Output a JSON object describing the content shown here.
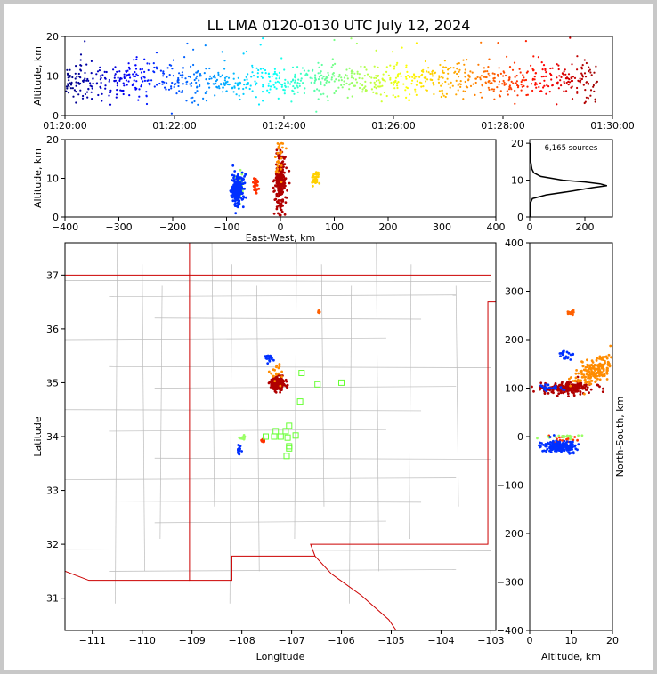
{
  "chart_data": [
    {
      "id": "time-height",
      "type": "scatter",
      "title": "LL LMA 0120-0130 UTC July 12, 2024",
      "xlabel": "",
      "ylabel": "Altitude, km",
      "x_ticks": [
        "01:20:00",
        "01:22:00",
        "01:24:00",
        "01:26:00",
        "01:28:00",
        "01:30:00"
      ],
      "x_range_minutes": [
        0,
        10
      ],
      "y_ticks": [
        "0",
        "10",
        "20"
      ],
      "ylim": [
        0,
        20
      ],
      "colormap": "jet by time",
      "density_by_minute": [
        {
          "t": 0.1,
          "alt": 8.5,
          "spread": 2.0
        },
        {
          "t": 0.5,
          "alt": 9.0,
          "spread": 2.5
        },
        {
          "t": 1.0,
          "alt": 8.5,
          "spread": 2.5
        },
        {
          "t": 1.5,
          "alt": 9.0,
          "spread": 2.5
        },
        {
          "t": 2.0,
          "alt": 9.0,
          "spread": 2.5
        },
        {
          "t": 2.5,
          "alt": 8.0,
          "spread": 2.0
        },
        {
          "t": 3.0,
          "alt": 8.0,
          "spread": 1.8
        },
        {
          "t": 3.5,
          "alt": 8.5,
          "spread": 2.0
        },
        {
          "t": 4.0,
          "alt": 8.5,
          "spread": 2.0
        },
        {
          "t": 4.5,
          "alt": 9.0,
          "spread": 2.0
        },
        {
          "t": 5.0,
          "alt": 9.0,
          "spread": 2.0
        },
        {
          "t": 5.5,
          "alt": 9.0,
          "spread": 2.0
        },
        {
          "t": 6.0,
          "alt": 8.5,
          "spread": 2.0
        },
        {
          "t": 6.5,
          "alt": 9.0,
          "spread": 2.0
        },
        {
          "t": 7.0,
          "alt": 9.0,
          "spread": 2.2
        },
        {
          "t": 7.5,
          "alt": 9.0,
          "spread": 2.2
        },
        {
          "t": 8.0,
          "alt": 8.5,
          "spread": 2.2
        },
        {
          "t": 8.5,
          "alt": 8.5,
          "spread": 2.0
        },
        {
          "t": 9.0,
          "alt": 8.5,
          "spread": 2.0
        },
        {
          "t": 9.5,
          "alt": 8.5,
          "spread": 2.5
        }
      ]
    },
    {
      "id": "ew-altitude",
      "type": "scatter",
      "xlabel": "East-West, km",
      "ylabel": "Altitude, km",
      "x_ticks": [
        "−400",
        "−300",
        "−200",
        "−100",
        "0",
        "100",
        "200",
        "300",
        "400"
      ],
      "xlim": [
        -400,
        400
      ],
      "y_ticks": [
        "0",
        "10",
        "20"
      ],
      "ylim": [
        0,
        20
      ],
      "clusters": [
        {
          "x": 0,
          "alt": 9,
          "sx": 5,
          "salt": 4,
          "color": "#b00000"
        },
        {
          "x": -3,
          "alt": 16,
          "sx": 4,
          "salt": 3,
          "color": "#ff8c00"
        },
        {
          "x": -75,
          "alt": 8,
          "sx": 3,
          "salt": 2,
          "color": "#9aff66"
        },
        {
          "x": -45,
          "alt": 8,
          "sx": 3,
          "salt": 1,
          "color": "#ff3000"
        },
        {
          "x": -80,
          "alt": 7,
          "sx": 6,
          "salt": 2,
          "color": "#0030ff"
        },
        {
          "x": 65,
          "alt": 10,
          "sx": 3,
          "salt": 1,
          "color": "#ffd000"
        }
      ]
    },
    {
      "id": "altitude-histogram",
      "type": "line",
      "annotation": "6,165 sources",
      "x_ticks": [
        "0",
        "200"
      ],
      "xlim": [
        0,
        300
      ],
      "y_ticks": [
        "0",
        "10",
        "20"
      ],
      "ylim": [
        0,
        21
      ],
      "profile": [
        {
          "alt": 0.0,
          "count": 2
        },
        {
          "alt": 2.0,
          "count": 2
        },
        {
          "alt": 4.0,
          "count": 4
        },
        {
          "alt": 5.0,
          "count": 10
        },
        {
          "alt": 6.0,
          "count": 60
        },
        {
          "alt": 7.0,
          "count": 150
        },
        {
          "alt": 8.0,
          "count": 230
        },
        {
          "alt": 8.5,
          "count": 280
        },
        {
          "alt": 9.0,
          "count": 255
        },
        {
          "alt": 9.5,
          "count": 200
        },
        {
          "alt": 10.0,
          "count": 120
        },
        {
          "alt": 11.0,
          "count": 40
        },
        {
          "alt": 12.0,
          "count": 15
        },
        {
          "alt": 13.0,
          "count": 8
        },
        {
          "alt": 15.0,
          "count": 4
        },
        {
          "alt": 17.0,
          "count": 2
        },
        {
          "alt": 20.0,
          "count": 1
        }
      ]
    },
    {
      "id": "plan-view",
      "type": "scatter",
      "xlabel": "Longitude",
      "ylabel": "Latitude",
      "x_ticks": [
        "−111",
        "−110",
        "−109",
        "−108",
        "−107",
        "−106",
        "−105",
        "−104",
        "−103"
      ],
      "xlim": [
        -111.55,
        -102.9
      ],
      "y_ticks": [
        "31",
        "32",
        "33",
        "34",
        "35",
        "36",
        "37"
      ],
      "ylim": [
        30.4,
        37.6
      ],
      "stations": [
        {
          "lon": -107.12,
          "lat": 34.1
        },
        {
          "lon": -107.32,
          "lat": 34.1
        },
        {
          "lon": -107.05,
          "lat": 34.2
        },
        {
          "lon": -107.35,
          "lat": 34.0
        },
        {
          "lon": -107.22,
          "lat": 34.0
        },
        {
          "lon": -107.08,
          "lat": 33.98
        },
        {
          "lon": -106.92,
          "lat": 34.02
        },
        {
          "lon": -107.05,
          "lat": 33.82
        },
        {
          "lon": -107.05,
          "lat": 33.78
        },
        {
          "lon": -107.1,
          "lat": 33.64
        },
        {
          "lon": -107.52,
          "lat": 34.0
        },
        {
          "lon": -106.83,
          "lat": 34.65
        },
        {
          "lon": -106.8,
          "lat": 35.18
        },
        {
          "lon": -106.48,
          "lat": 34.97
        },
        {
          "lon": -106.0,
          "lat": 35.0
        }
      ],
      "clusters": [
        {
          "lon": -107.28,
          "lat": 34.98,
          "slon": 0.07,
          "slat": 0.06,
          "color": "#b00000"
        },
        {
          "lon": -107.32,
          "lat": 35.18,
          "slon": 0.05,
          "slat": 0.12,
          "color": "#ff8c00"
        },
        {
          "lon": -107.45,
          "lat": 35.45,
          "slon": 0.03,
          "slat": 0.05,
          "color": "#0030ff"
        },
        {
          "lon": -107.98,
          "lat": 33.98,
          "slon": 0.03,
          "slat": 0.02,
          "color": "#9aff66"
        },
        {
          "lon": -107.58,
          "lat": 33.93,
          "slon": 0.02,
          "slat": 0.02,
          "color": "#ff3000"
        },
        {
          "lon": -108.05,
          "lat": 33.75,
          "slon": 0.02,
          "slat": 0.05,
          "color": "#0030ff"
        },
        {
          "lon": -106.45,
          "lat": 36.32,
          "slon": 0.01,
          "slat": 0.01,
          "color": "#ff6000"
        }
      ]
    },
    {
      "id": "altitude-ns",
      "type": "scatter",
      "xlabel": "Altitude, km",
      "ylabel": "North-South, km",
      "x_ticks": [
        "0",
        "10",
        "20"
      ],
      "xlim": [
        0,
        20
      ],
      "y_ticks": [
        "−400",
        "−300",
        "−200",
        "−100",
        "0",
        "100",
        "200",
        "300",
        "400"
      ],
      "ylim": [
        -400,
        400
      ],
      "clusters": [
        {
          "alt": 9,
          "ns": 100,
          "salt": 3,
          "sns": 6,
          "color": "#b00000"
        },
        {
          "alt": 16,
          "ns": 125,
          "salt": 2.5,
          "sns": 12,
          "color": "#ff8c00"
        },
        {
          "alt": 5,
          "ns": 100,
          "salt": 2,
          "sns": 5,
          "color": "#0030ff"
        },
        {
          "alt": 8,
          "ns": -5,
          "salt": 2,
          "sns": 4,
          "color": "#ff3000"
        },
        {
          "alt": 8,
          "ns": 0,
          "salt": 2,
          "sns": 2,
          "color": "#9aff66"
        },
        {
          "alt": 7,
          "ns": -20,
          "salt": 2,
          "sns": 6,
          "color": "#0030ff"
        },
        {
          "alt": 9,
          "ns": 170,
          "salt": 1,
          "sns": 5,
          "color": "#0030ff"
        },
        {
          "alt": 10,
          "ns": 255,
          "salt": 0.5,
          "sns": 2,
          "color": "#ff6000"
        }
      ]
    }
  ],
  "colors": {
    "state_border": "#cc0000",
    "county_border": "#bbbbbb",
    "station": "#66ff33",
    "frame_bg": "#ffffff",
    "outer_bg": "#c8c8c8"
  }
}
